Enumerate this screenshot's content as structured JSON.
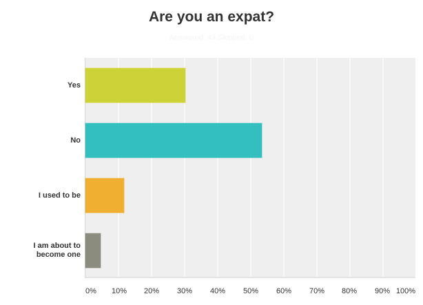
{
  "title": "Are you an expat?",
  "subtitle": "Answered: 43   Skipped: 0",
  "chart_data": {
    "type": "bar",
    "orientation": "horizontal",
    "title": "Are you an expat?",
    "categories": [
      "Yes",
      "No",
      "I used to be",
      "I am about to become one"
    ],
    "values": [
      30.23,
      53.49,
      11.63,
      4.65
    ],
    "colors": [
      "#cdd236",
      "#33bfbf",
      "#f1af31",
      "#8c8c7e"
    ],
    "xlabel": "",
    "ylabel": "",
    "xlim": [
      0,
      100
    ],
    "xticks": [
      "0%",
      "10%",
      "20%",
      "30%",
      "40%",
      "50%",
      "60%",
      "70%",
      "80%",
      "90%",
      "100%"
    ],
    "grid": true,
    "legend": null
  },
  "labels": {
    "yes": "Yes",
    "no": "No",
    "used": "I used to be",
    "about_line1": "I am about to",
    "about_line2": "become one"
  }
}
